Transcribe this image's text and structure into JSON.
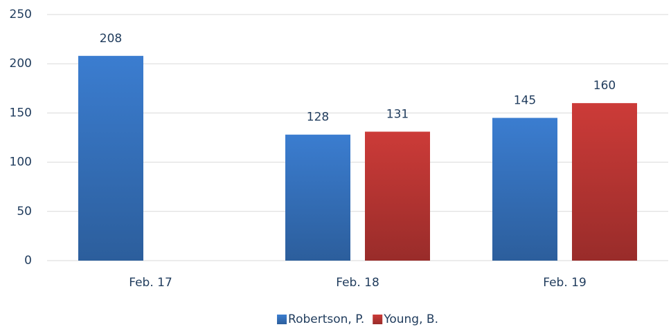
{
  "chart_data": {
    "type": "bar",
    "categories": [
      "Feb. 17",
      "Feb. 18",
      "Feb. 19"
    ],
    "series": [
      {
        "name": "Robertson, P.",
        "color": "#3b7dd0",
        "values": [
          208,
          128,
          145
        ]
      },
      {
        "name": "Young, B.",
        "color": "#cc3b38",
        "values": [
          null,
          131,
          160
        ]
      }
    ],
    "ylim": [
      0,
      250
    ],
    "yticks": [
      0,
      50,
      100,
      150,
      200,
      250
    ],
    "grid": true,
    "legend": "bottom"
  }
}
